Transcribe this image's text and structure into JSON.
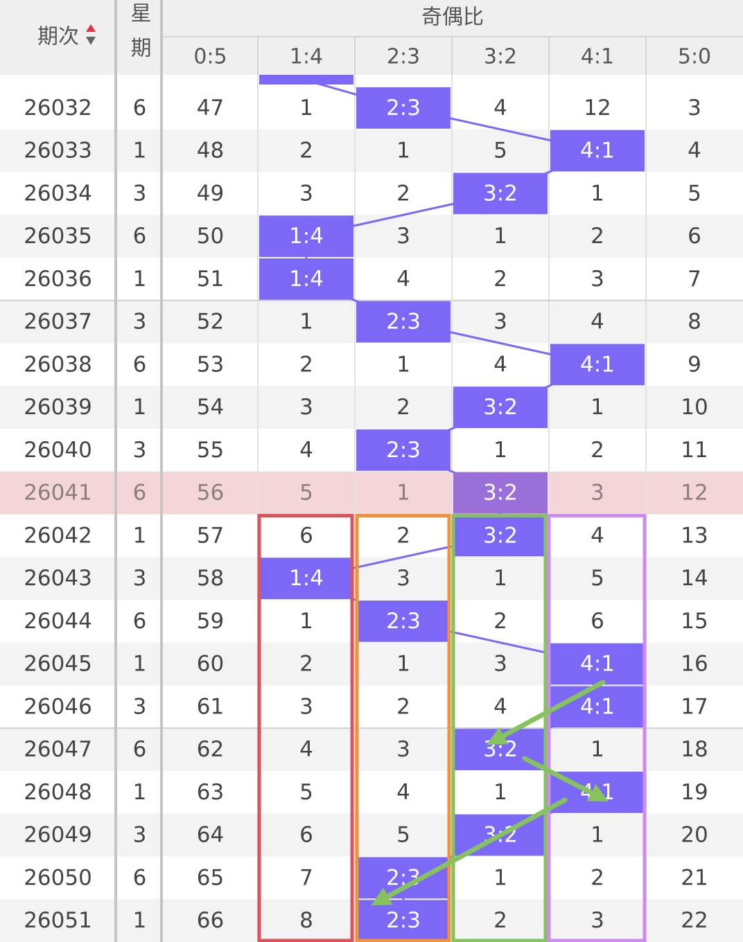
{
  "header": {
    "period": "期次",
    "weekday": "星期",
    "group": "奇偶比",
    "columns": [
      "0:5",
      "1:4",
      "2:3",
      "3:2",
      "4:1",
      "5:0"
    ]
  },
  "table": {
    "rows": [
      [
        "26032",
        "6",
        "47",
        "1",
        "2:3",
        "4",
        "12",
        "3"
      ],
      [
        "26033",
        "1",
        "48",
        "2",
        "1",
        "5",
        "4:1",
        "4"
      ],
      [
        "26034",
        "3",
        "49",
        "3",
        "2",
        "3:2",
        "1",
        "5"
      ],
      [
        "26035",
        "6",
        "50",
        "1:4",
        "3",
        "1",
        "2",
        "6"
      ],
      [
        "26036",
        "1",
        "51",
        "1:4",
        "4",
        "2",
        "3",
        "7"
      ],
      [
        "26037",
        "3",
        "52",
        "1",
        "2:3",
        "3",
        "4",
        "8"
      ],
      [
        "26038",
        "6",
        "53",
        "2",
        "1",
        "4",
        "4:1",
        "9"
      ],
      [
        "26039",
        "1",
        "54",
        "3",
        "2",
        "3:2",
        "1",
        "10"
      ],
      [
        "26040",
        "3",
        "55",
        "4",
        "2:3",
        "1",
        "2",
        "11"
      ],
      [
        "26041",
        "6",
        "56",
        "5",
        "1",
        "3:2",
        "3",
        "12"
      ],
      [
        "26042",
        "1",
        "57",
        "6",
        "2",
        "3:2",
        "4",
        "13"
      ],
      [
        "26043",
        "3",
        "58",
        "1:4",
        "3",
        "1",
        "5",
        "14"
      ],
      [
        "26044",
        "6",
        "59",
        "1",
        "2:3",
        "2",
        "6",
        "15"
      ],
      [
        "26045",
        "1",
        "60",
        "2",
        "1",
        "3",
        "4:1",
        "16"
      ],
      [
        "26046",
        "3",
        "61",
        "3",
        "2",
        "4",
        "4:1",
        "17"
      ],
      [
        "26047",
        "6",
        "62",
        "4",
        "3",
        "3:2",
        "1",
        "18"
      ],
      [
        "26048",
        "1",
        "63",
        "5",
        "4",
        "1",
        "4:1",
        "19"
      ],
      [
        "26049",
        "3",
        "64",
        "6",
        "5",
        "3:2",
        "1",
        "20"
      ],
      [
        "26050",
        "6",
        "65",
        "7",
        "2:3",
        "1",
        "2",
        "21"
      ],
      [
        "26051",
        "1",
        "66",
        "8",
        "2:3",
        "2",
        "3",
        "22"
      ]
    ]
  }
}
